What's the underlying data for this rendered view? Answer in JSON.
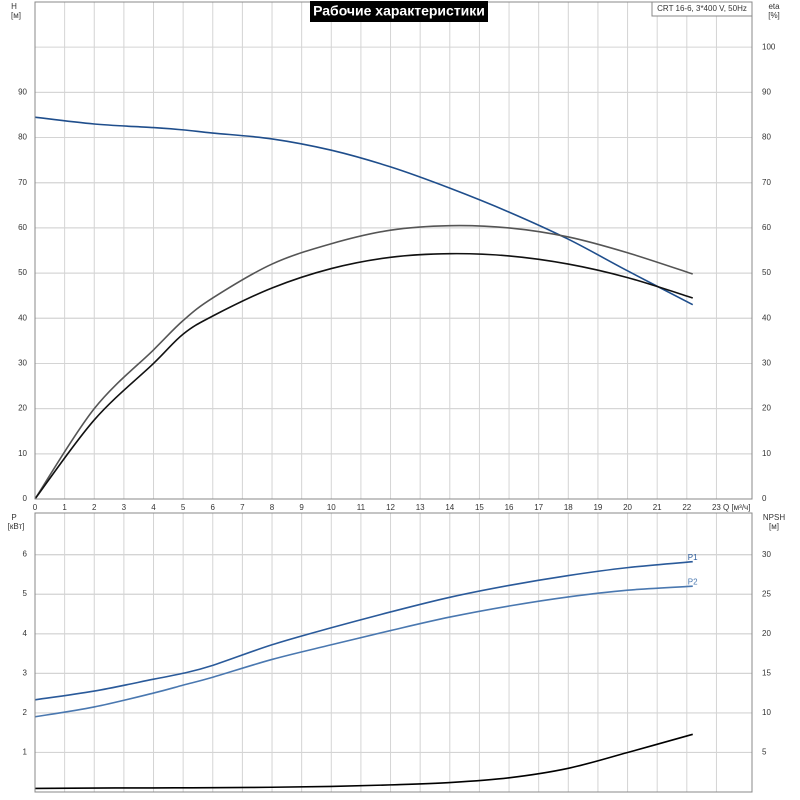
{
  "chart_data": [
    {
      "type": "line",
      "title": "Рабочие характеристики",
      "subtitle": "CRT 16-6, 3*400 V, 50Hz",
      "x_label": "Q [м³/ч]",
      "y_label": "H",
      "y_unit": "[м]",
      "y2_label": "eta",
      "y2_unit": "[%]",
      "xlim": [
        0,
        24.2
      ],
      "xticks": [
        0,
        1,
        2,
        3,
        4,
        5,
        6,
        7,
        8,
        9,
        10,
        11,
        12,
        13,
        14,
        15,
        16,
        17,
        18,
        19,
        20,
        21,
        22,
        23
      ],
      "ylim": [
        0,
        110
      ],
      "yticks": [
        0,
        10,
        20,
        30,
        40,
        50,
        60,
        70,
        80,
        90
      ],
      "y2lim": [
        0,
        110
      ],
      "y2ticks": [
        0,
        10,
        20,
        30,
        40,
        50,
        60,
        70,
        80,
        90,
        100
      ],
      "grid": true,
      "x": [
        0,
        2,
        4,
        5,
        6,
        8,
        10,
        12,
        14,
        16,
        18,
        20,
        22.2
      ],
      "series": [
        {
          "color": "#1f4e8c",
          "values": [
            84.5,
            83,
            82.2,
            81.7,
            81,
            79.7,
            77.2,
            73.5,
            68.8,
            63.5,
            57.5,
            50.5,
            43
          ]
        },
        {
          "color": "#555555",
          "axis": "y2",
          "values": [
            0,
            20,
            33,
            39.5,
            44.5,
            52,
            56.5,
            59.5,
            60.5,
            60,
            58,
            54.5,
            49.8
          ]
        },
        {
          "color": "#111111",
          "axis": "y2",
          "values": [
            0,
            17.5,
            30,
            36.5,
            40.5,
            46.7,
            51,
            53.5,
            54.3,
            53.8,
            52,
            49,
            44.5
          ]
        }
      ]
    },
    {
      "type": "line",
      "y_label": "P",
      "y_unit": "[кВт]",
      "y2_label": "NPSH",
      "y2_unit": "[м]",
      "xlim": [
        0,
        24.2
      ],
      "xticks": [
        0,
        1,
        2,
        3,
        4,
        5,
        6,
        7,
        8,
        9,
        10,
        11,
        12,
        13,
        14,
        15,
        16,
        17,
        18,
        19,
        20,
        21,
        22,
        23
      ],
      "ylim": [
        0,
        7.05
      ],
      "yticks": [
        1,
        2,
        3,
        4,
        5,
        6
      ],
      "y2lim": [
        0,
        35.3
      ],
      "y2ticks": [
        5,
        10,
        15,
        20,
        25,
        30
      ],
      "grid": true,
      "x": [
        0,
        2,
        4,
        5,
        6,
        8,
        10,
        12,
        14,
        16,
        18,
        20,
        22.2
      ],
      "series": [
        {
          "name": "P1",
          "color": "#2a5a9a",
          "values": [
            2.33,
            2.55,
            2.85,
            3.0,
            3.2,
            3.72,
            4.15,
            4.55,
            4.92,
            5.22,
            5.47,
            5.67,
            5.82
          ]
        },
        {
          "name": "P2",
          "color": "#4a78b0",
          "values": [
            1.9,
            2.15,
            2.5,
            2.7,
            2.9,
            3.35,
            3.72,
            4.08,
            4.42,
            4.7,
            4.93,
            5.1,
            5.2
          ]
        },
        {
          "color": "#000000",
          "axis": "y2",
          "values": [
            0.45,
            0.5,
            0.52,
            0.53,
            0.55,
            0.6,
            0.7,
            0.9,
            1.2,
            1.8,
            3.0,
            5.0,
            7.3
          ]
        }
      ]
    }
  ]
}
